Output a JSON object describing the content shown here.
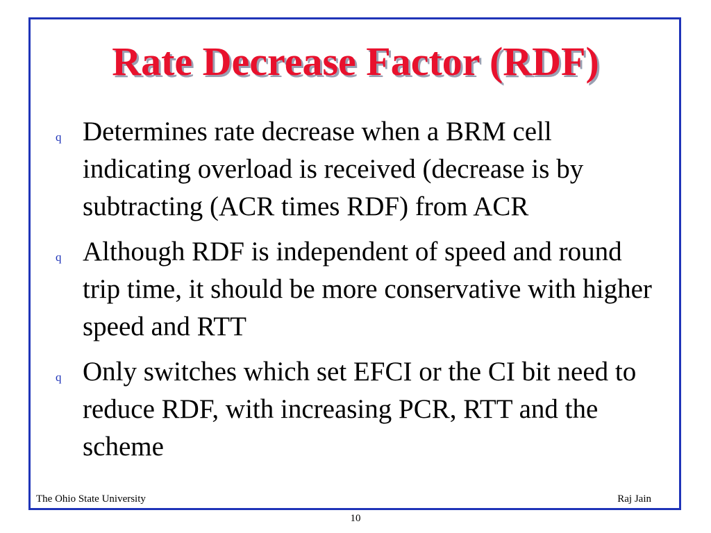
{
  "slide": {
    "title": "Rate Decrease Factor (RDF)",
    "bullet_marker": "q",
    "bullets": [
      "Determines rate decrease when a BRM cell indicating overload is received (decrease is by subtracting (ACR times RDF) from ACR",
      "Although RDF is independent of speed and round trip time, it should be more conservative with higher speed and RTT",
      "Only switches which set EFCI or the CI bit need to reduce RDF, with increasing PCR, RTT and the scheme"
    ],
    "footer": {
      "left": "The Ohio State University",
      "right": "Raj Jain"
    },
    "page_number": "10"
  },
  "colors": {
    "title": "#e8112d",
    "frame": "#1f34b8",
    "bullet_marker": "#1f34b8",
    "text": "#000000"
  }
}
